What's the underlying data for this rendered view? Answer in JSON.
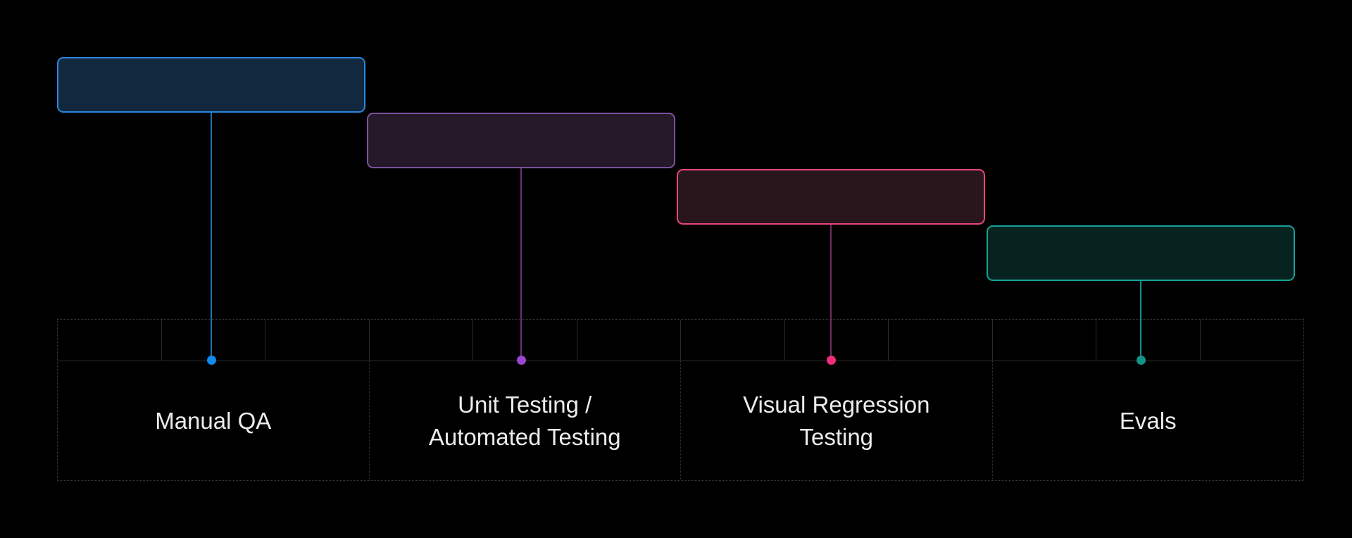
{
  "canvas": {
    "background": "#000000"
  },
  "diagram": {
    "stages": [
      {
        "id": "manual-qa",
        "label": "Manual QA",
        "box_fill": "#12283f",
        "box_border": "#2b87dd",
        "line_color": "#1b74b4",
        "dot_color": "#1289ee"
      },
      {
        "id": "unit-automated-testing",
        "label": "Unit Testing /\nAutomated Testing",
        "box_fill": "#241829",
        "box_border": "#7c50a0",
        "line_color": "#6c2d7a",
        "dot_color": "#9a46d2"
      },
      {
        "id": "visual-regression-testing",
        "label": "Visual Regression\nTesting",
        "box_fill": "#29161d",
        "box_border": "#e94580",
        "line_color": "#6f2a62",
        "dot_color": "#ef2e7b"
      },
      {
        "id": "evals",
        "label": "Evals",
        "box_fill": "#062320",
        "box_border": "#17a096",
        "line_color": "#12918a",
        "dot_color": "#12948a"
      }
    ],
    "grid": {
      "rows": 2,
      "columns": 12,
      "columns_per_stage": 3,
      "line_color": "#2b2b2b",
      "outer_border_color": "#3e3e3e",
      "section_divider_color": "#3f2b47",
      "text_color": "#ececec"
    }
  }
}
